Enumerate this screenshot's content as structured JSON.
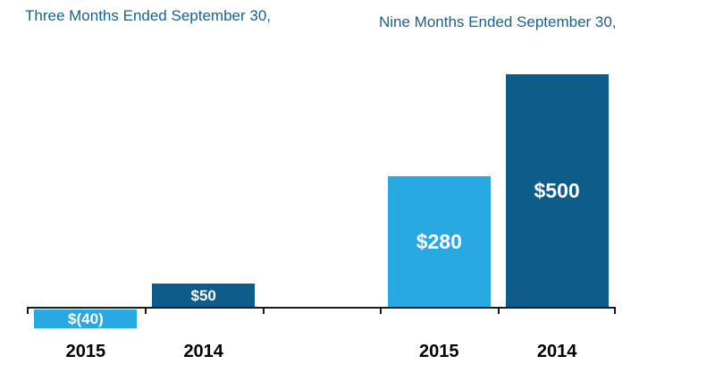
{
  "chart_data": {
    "type": "bar",
    "groups": [
      {
        "title": "Three Months Ended September 30,",
        "bars": [
          {
            "category": "2015",
            "value": -40,
            "value_label": "$(40)",
            "color": "#29A9E1"
          },
          {
            "category": "2014",
            "value": 50,
            "value_label": "$50",
            "color": "#0E5C89"
          }
        ]
      },
      {
        "title": "Nine Months Ended September 30,",
        "bars": [
          {
            "category": "2015",
            "value": 280,
            "value_label": "$280",
            "color": "#29A9E1"
          },
          {
            "category": "2014",
            "value": 500,
            "value_label": "$500",
            "color": "#0E5C89"
          }
        ]
      }
    ],
    "colors": {
      "series_2015": "#29A9E1",
      "series_2014": "#0E5C89",
      "title_text": "#1A618F",
      "axis": "#1a1a1a",
      "value_label_text": "#FFFFFF",
      "category_label_text": "#000000"
    },
    "layout_hints": {
      "grid": false,
      "legend": "none",
      "value_labels": "inside-bars",
      "baseline": 0,
      "negative_bars_below_axis": true,
      "empty_slot_between_groups": true
    }
  }
}
